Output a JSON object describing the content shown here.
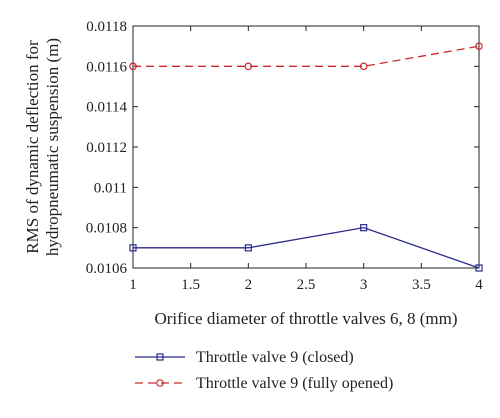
{
  "chart_data": {
    "type": "line",
    "xlabel": "Orifice diameter of throttle valves 6, 8 (mm)",
    "ylabel_line1": "RMS of dynamic deflection for",
    "ylabel_line2": "hydropneumatic suspension (m)",
    "xlim": [
      1,
      4
    ],
    "ylim": [
      0.0106,
      0.0118
    ],
    "x_ticks": [
      "1",
      "1.5",
      "2",
      "2.5",
      "3",
      "3.5",
      "4"
    ],
    "y_ticks": [
      "0.0106",
      "0.0108",
      "0.011",
      "0.0112",
      "0.0114",
      "0.0116",
      "0.0118"
    ],
    "grid": false,
    "legend_position": "below",
    "series": [
      {
        "name": "Throttle valve 9 (closed)",
        "color": "#2b2b8c",
        "line_style": "solid",
        "marker": "square",
        "x": [
          1,
          2,
          3,
          4
        ],
        "y": [
          0.0107,
          0.0107,
          0.0108,
          0.0106
        ]
      },
      {
        "name": "Throttle valve 9 (fully opened)",
        "color": "#cc2b2b",
        "line_style": "dashed",
        "marker": "circle",
        "x": [
          1,
          2,
          3,
          4
        ],
        "y": [
          0.0116,
          0.0116,
          0.0116,
          0.0117
        ]
      }
    ]
  }
}
